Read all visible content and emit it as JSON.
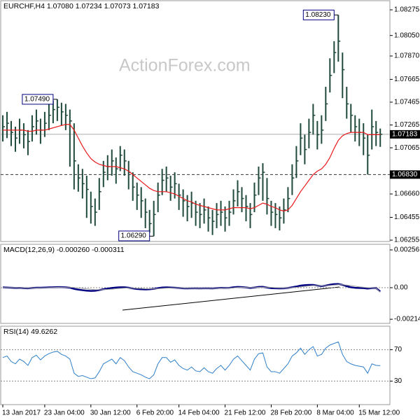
{
  "chart_data": [
    {
      "type": "ohlc",
      "title": "EURCHF,H4  1.07080 1.07234 1.07073 1.07183",
      "watermark": "ActionForex.com",
      "color": "#1f4a3c",
      "high": [
        1.0735,
        1.0738,
        1.073,
        1.0725,
        1.0732,
        1.0728,
        1.0722,
        1.0735,
        1.074,
        1.0732,
        1.0738,
        1.0745,
        1.0748,
        1.0749,
        1.0746,
        1.0745,
        1.074,
        1.0728,
        1.0692,
        1.0688,
        1.0682,
        1.0668,
        1.0662,
        1.068,
        1.0695,
        1.07,
        1.0705,
        1.0698,
        1.0708,
        1.0705,
        1.0695,
        1.0685,
        1.0676,
        1.0672,
        1.0662,
        1.0652,
        1.066,
        1.0676,
        1.0688,
        1.069,
        1.0682,
        1.0685,
        1.0675,
        1.067,
        1.0665,
        1.0668,
        1.066,
        1.0658,
        1.0662,
        1.0655,
        1.0652,
        1.0658,
        1.066,
        1.0655,
        1.066,
        1.067,
        1.0678,
        1.0672,
        1.0665,
        1.0658,
        1.0676,
        1.069,
        1.0693,
        1.068,
        1.066,
        1.0658,
        1.0655,
        1.0662,
        1.0672,
        1.0692,
        1.0708,
        1.0728,
        1.0718,
        1.0732,
        1.0745,
        1.073,
        1.0735,
        1.076,
        1.0785,
        1.08,
        1.0823,
        1.079,
        1.076,
        1.0745,
        1.0735,
        1.0732,
        1.0728,
        1.0718,
        1.074,
        1.073,
        1.07234
      ],
      "low": [
        1.0712,
        1.0715,
        1.0708,
        1.0703,
        1.071,
        1.0706,
        1.07,
        1.0712,
        1.0718,
        1.071,
        1.0716,
        1.0722,
        1.0728,
        1.073,
        1.0726,
        1.0722,
        1.069,
        1.067,
        1.0668,
        1.0662,
        1.0645,
        1.064,
        1.0638,
        1.0652,
        1.0672,
        1.0678,
        1.0682,
        1.0675,
        1.0686,
        1.0682,
        1.067,
        1.066,
        1.0652,
        1.0645,
        1.0636,
        1.0632,
        1.0629,
        1.065,
        1.0665,
        1.0668,
        1.066,
        1.0662,
        1.0652,
        1.0646,
        1.0642,
        1.0645,
        1.0638,
        1.0636,
        1.064,
        1.0633,
        1.063,
        1.0636,
        1.0638,
        1.0633,
        1.0638,
        1.0648,
        1.0655,
        1.065,
        1.0642,
        1.0636,
        1.065,
        1.0665,
        1.066,
        1.0648,
        1.0638,
        1.0636,
        1.0634,
        1.064,
        1.065,
        1.0665,
        1.068,
        1.07,
        1.0692,
        1.0706,
        1.0718,
        1.0705,
        1.071,
        1.073,
        1.0755,
        1.0772,
        1.0782,
        1.075,
        1.0732,
        1.072,
        1.0712,
        1.0708,
        1.07,
        1.0683,
        1.0705,
        1.0708,
        1.07073
      ],
      "close": [
        1.0725,
        1.0728,
        1.072,
        1.0715,
        1.0722,
        1.0718,
        1.0712,
        1.0725,
        1.073,
        1.0722,
        1.0728,
        1.0735,
        1.074,
        1.0742,
        1.0738,
        1.0735,
        1.073,
        1.0695,
        1.068,
        1.0675,
        1.067,
        1.0655,
        1.065,
        1.0668,
        1.0685,
        1.069,
        1.0695,
        1.0688,
        1.07,
        1.0695,
        1.0685,
        1.0672,
        1.0665,
        1.066,
        1.065,
        1.064,
        1.0648,
        1.0665,
        1.0678,
        1.068,
        1.0672,
        1.0675,
        1.0665,
        1.066,
        1.0655,
        1.0658,
        1.065,
        1.0648,
        1.0652,
        1.0645,
        1.0642,
        1.0648,
        1.065,
        1.0645,
        1.065,
        1.066,
        1.0668,
        1.0662,
        1.0655,
        1.0648,
        1.0665,
        1.068,
        1.0685,
        1.0662,
        1.065,
        1.0648,
        1.0645,
        1.0652,
        1.0662,
        1.068,
        1.0695,
        1.0715,
        1.0705,
        1.072,
        1.0735,
        1.0718,
        1.0722,
        1.0745,
        1.077,
        1.079,
        1.08,
        1.0775,
        1.0745,
        1.0735,
        1.0725,
        1.072,
        1.0715,
        1.07,
        1.0725,
        1.072,
        1.07183
      ],
      "ma": {
        "color": "#e8191c",
        "values": [
          1.0722,
          1.0722,
          1.0722,
          1.0722,
          1.0722,
          1.0722,
          1.0721,
          1.0721,
          1.0722,
          1.0722,
          1.0722,
          1.0723,
          1.0724,
          1.0725,
          1.0726,
          1.0727,
          1.0727,
          1.0722,
          1.0715,
          1.0708,
          1.0702,
          1.0697,
          1.0694,
          1.0692,
          1.0691,
          1.069,
          1.069,
          1.069,
          1.0689,
          1.0688,
          1.0686,
          1.0683,
          1.068,
          1.0677,
          1.0674,
          1.0671,
          1.0669,
          1.0668,
          1.0668,
          1.0668,
          1.0667,
          1.0666,
          1.0664,
          1.0662,
          1.066,
          1.0659,
          1.0657,
          1.0656,
          1.0655,
          1.0654,
          1.0653,
          1.0652,
          1.0652,
          1.0652,
          1.0653,
          1.0654,
          1.0654,
          1.0654,
          1.0654,
          1.0653,
          1.0654,
          1.0656,
          1.0658,
          1.0657,
          1.0655,
          1.0654,
          1.0652,
          1.0651,
          1.0652,
          1.0656,
          1.0662,
          1.0668,
          1.0673,
          1.0678,
          1.0683,
          1.0686,
          1.0688,
          1.0692,
          1.0698,
          1.0706,
          1.0713,
          1.0717,
          1.0719,
          1.072,
          1.072,
          1.072,
          1.072,
          1.0718,
          1.0718,
          1.0718,
          1.0718
        ]
      },
      "price_labels": [
        {
          "value": 1.0823,
          "label": "1.08230"
        },
        {
          "value": 1.0749,
          "label": "1.07490"
        },
        {
          "value": 1.0629,
          "label": "1.06290"
        }
      ],
      "levels": [
        {
          "value": 1.07183,
          "style": "solid"
        },
        {
          "value": 1.0683,
          "label": "1.06830",
          "style": "dashed"
        }
      ],
      "ylim": [
        1.06243,
        1.08355
      ],
      "yticks": [
        1.08275,
        {
          "value": 1.0805,
          "label": "1.08050"
        },
        {
          "value": 1.0787,
          "label": "1.07870"
        },
        1.07665,
        1.07465,
        1.07265,
        1.07065,
        {
          "value": 1.0666,
          "label": "1.06660"
        },
        1.06455,
        1.06255
      ],
      "xlim": [
        -0.5,
        92.3
      ],
      "xticks": [
        {
          "value": 0,
          "label": "13 Jan 2017"
        },
        {
          "value": 10,
          "label": "23 Jan 04:00"
        },
        {
          "value": 21,
          "label": "30 Jan 12:00"
        },
        {
          "value": 32,
          "label": "6 Feb 20:00"
        },
        {
          "value": 42,
          "label": "14 Feb 04:00"
        },
        {
          "value": 53,
          "label": "21 Feb 12:00"
        },
        {
          "value": 64,
          "label": "28 Feb 20:00"
        },
        {
          "value": 75,
          "label": "8 Mar 04:00"
        },
        {
          "value": 85,
          "label": "15 Mar 12:00"
        }
      ]
    },
    {
      "type": "line",
      "title": "MACD(12,26,9) -0.000260 -0.000311",
      "zero_line": true,
      "ylim": [
        -0.00242,
        0.00294
      ],
      "yticks": [
        0.00256,
        {
          "value": 0,
          "label": "0.00"
        },
        -0.00214
      ],
      "series": [
        {
          "color": "#000080",
          "values": [
            2e-05,
            1e-05,
            0,
            -2e-05,
            -1e-05,
            -3e-05,
            -4e-05,
            -2e-05,
            0,
            0,
            1e-05,
            2e-05,
            3e-05,
            4e-05,
            4e-05,
            3e-05,
            0,
            -8e-05,
            -0.00013,
            -0.00017,
            -0.0002,
            -0.00022,
            -0.00021,
            -0.00016,
            -0.0001,
            -6e-05,
            -2e-05,
            1e-05,
            3e-05,
            3e-05,
            0,
            -5e-05,
            -9e-05,
            -0.00011,
            -0.00012,
            -0.00011,
            -8e-05,
            -3e-05,
            1e-05,
            2e-05,
            1e-05,
            0,
            -2e-05,
            -4e-05,
            -5e-05,
            -4e-05,
            -4e-05,
            -5e-05,
            -4e-05,
            -4e-05,
            -5e-05,
            -3e-05,
            -1e-05,
            -2e-05,
            -1e-05,
            3e-05,
            5e-05,
            4e-05,
            2e-05,
            -2e-05,
            1e-05,
            5e-05,
            6e-05,
            1e-05,
            -3e-05,
            -4e-05,
            -5e-05,
            -4e-05,
            -2e-05,
            3e-05,
            8e-05,
            0.00014,
            0.00017,
            0.00019,
            0.00019,
            0.00014,
            0.0001,
            0.00014,
            0.0002,
            0.00024,
            0.00025,
            0.00019,
            0.0001,
            3e-05,
            -1e-05,
            -2e-05,
            -3e-05,
            -6e-05,
            -3e-05,
            -2e-05,
            -0.00026
          ]
        },
        {
          "color": "#a0a0a0",
          "values": [
            1e-05,
            1e-05,
            1e-05,
            0,
            0,
            -1e-05,
            -2e-05,
            -2e-05,
            -2e-05,
            -1e-05,
            0,
            0,
            1e-05,
            2e-05,
            3e-05,
            3e-05,
            3e-05,
            1e-05,
            -2e-05,
            -5e-05,
            -8e-05,
            -0.00011,
            -0.00013,
            -0.00014,
            -0.00013,
            -0.00012,
            -0.0001,
            -7e-05,
            -5e-05,
            -3e-05,
            -2e-05,
            -2e-05,
            -4e-05,
            -5e-05,
            -7e-05,
            -8e-05,
            -8e-05,
            -7e-05,
            -5e-05,
            -3e-05,
            -2e-05,
            -1e-05,
            -1e-05,
            -2e-05,
            -3e-05,
            -3e-05,
            -4e-05,
            -4e-05,
            -4e-05,
            -4e-05,
            -4e-05,
            -4e-05,
            -3e-05,
            -3e-05,
            -2e-05,
            -1e-05,
            1e-05,
            2e-05,
            2e-05,
            1e-05,
            1e-05,
            2e-05,
            3e-05,
            3e-05,
            2e-05,
            0,
            -1e-05,
            -2e-05,
            -2e-05,
            0,
            2e-05,
            5e-05,
            9e-05,
            0.00012,
            0.00014,
            0.00014,
            0.00013,
            0.00013,
            0.00015,
            0.00018,
            0.0002,
            0.0002,
            0.00018,
            0.00015,
            0.0001,
            6e-05,
            3e-05,
            0,
            -1e-05,
            -2e-05,
            -0.000311
          ]
        }
      ]
    },
    {
      "type": "line",
      "title": "RSI(14) 49.6262",
      "grid": true,
      "ylim": [
        0,
        100
      ],
      "yticks": [
        70,
        30
      ],
      "series": [
        {
          "color": "#2f7fc8",
          "values": [
            60,
            62,
            55,
            52,
            58,
            55,
            50,
            60,
            63,
            57,
            62,
            65,
            67,
            68,
            64,
            62,
            58,
            40,
            36,
            37,
            35,
            33,
            34,
            42,
            52,
            55,
            58,
            52,
            60,
            56,
            48,
            42,
            40,
            38,
            35,
            33,
            38,
            52,
            60,
            60,
            54,
            57,
            50,
            46,
            44,
            48,
            43,
            42,
            47,
            42,
            40,
            46,
            50,
            44,
            50,
            58,
            62,
            56,
            50,
            44,
            58,
            65,
            66,
            48,
            42,
            42,
            40,
            46,
            52,
            62,
            66,
            72,
            64,
            70,
            74,
            62,
            64,
            72,
            76,
            78,
            80,
            64,
            55,
            52,
            50,
            49,
            48,
            40,
            52,
            50,
            49.6262
          ]
        }
      ]
    }
  ]
}
